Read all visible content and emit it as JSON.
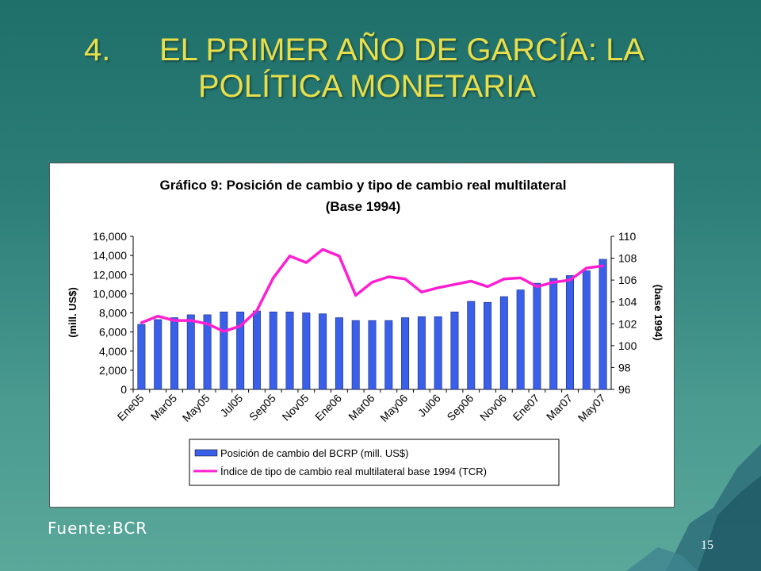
{
  "slide": {
    "title_number": "4.",
    "title_line1": "EL PRIMER AÑO DE GARCÍA: LA",
    "title_line2": "POLÍTICA MONETARIA",
    "source": "Fuente:BCR",
    "page_number": "15"
  },
  "colors": {
    "bar": "#3a5fe8",
    "line": "#ff1fd2",
    "title": "#e8df4a"
  },
  "chart_data": {
    "type": "bar",
    "title": "Gráfico 9: Posición de cambio y tipo de cambio real multilateral",
    "subtitle": "(Base 1994)",
    "ylabel": "(mill. US$)",
    "y2label": "(base 1994)",
    "ylim": [
      0,
      16000
    ],
    "y2lim": [
      96,
      110
    ],
    "yticks": [
      "0",
      "2,000",
      "4,000",
      "6,000",
      "8,000",
      "10,000",
      "12,000",
      "14,000",
      "16,000"
    ],
    "y2ticks": [
      "96",
      "98",
      "100",
      "102",
      "104",
      "106",
      "108",
      "110"
    ],
    "x": [
      "Ene05",
      "Feb05",
      "Mar05",
      "Abr05",
      "May05",
      "Jun05",
      "Jul05",
      "Ago05",
      "Sep05",
      "Oct05",
      "Nov05",
      "Dic05",
      "Ene06",
      "Feb06",
      "Mar06",
      "Abr06",
      "May06",
      "Jun06",
      "Jul06",
      "Ago06",
      "Sep06",
      "Oct06",
      "Nov06",
      "Dic06",
      "Ene07",
      "Feb07",
      "Mar07",
      "Abr07",
      "May07"
    ],
    "xtick_labels": [
      "Ene05",
      "",
      "Mar05",
      "",
      "May05",
      "",
      "Jul05",
      "",
      "Sep05",
      "",
      "Nov05",
      "",
      "Ene06",
      "",
      "Mar06",
      "",
      "May06",
      "",
      "Jul06",
      "",
      "Sep06",
      "",
      "Nov06",
      "",
      "Ene07",
      "",
      "Mar07",
      "",
      "May07"
    ],
    "grid": false,
    "legend_position": "bottom",
    "series": [
      {
        "name": "Posición de cambio del BCRP (mill. US$)",
        "type": "bar",
        "axis": "left",
        "values": [
          6800,
          7300,
          7500,
          7800,
          7800,
          8100,
          8100,
          8200,
          8100,
          8100,
          8000,
          7900,
          7500,
          7200,
          7200,
          7200,
          7500,
          7600,
          7600,
          8100,
          9200,
          9100,
          9700,
          10400,
          11100,
          11600,
          11900,
          12400,
          13600
        ]
      },
      {
        "name": "Índice de tipo de cambio real multilateral base 1994 (TCR)",
        "type": "line",
        "axis": "right",
        "values": [
          102.1,
          102.7,
          102.3,
          102.3,
          102.0,
          101.3,
          101.8,
          103.2,
          106.2,
          108.2,
          107.6,
          108.8,
          108.2,
          104.6,
          105.8,
          106.3,
          106.1,
          104.9,
          105.3,
          105.6,
          105.9,
          105.4,
          106.1,
          106.2,
          105.4,
          105.8,
          106.0,
          107.1,
          107.3
        ]
      }
    ]
  }
}
